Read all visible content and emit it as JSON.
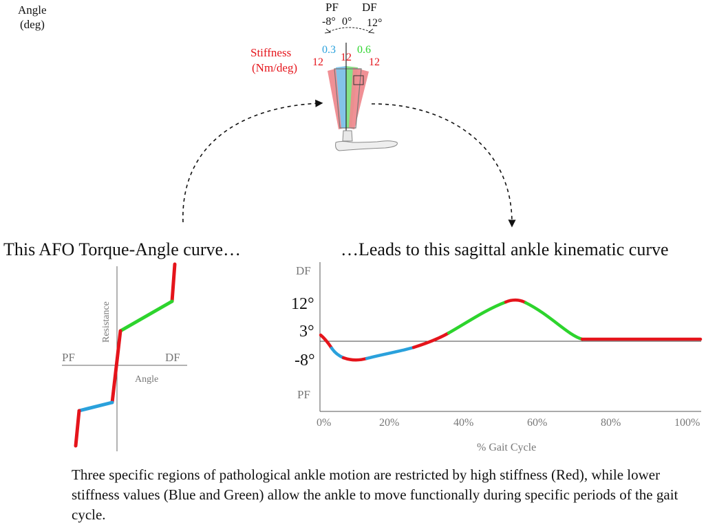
{
  "colors": {
    "red": "#e5141b",
    "blue": "#2aa1dc",
    "green": "#2dd42d",
    "red_fill": "#ef8a8f",
    "blue_fill": "#7cc6ec",
    "green_fill": "#7fe07f",
    "axis": "#555555",
    "text_gray": "#777777"
  },
  "afo": {
    "angle_label_1": "Angle",
    "angle_label_2": "(deg)",
    "pf_label": "PF",
    "df_label": "DF",
    "pf_angle": "-8°",
    "zero_angle": "0°",
    "df_angle": "12°",
    "stiffness_label_1": "Stiffness",
    "stiffness_label_2": "(Nm/deg)",
    "stiffness_left_red": "12",
    "stiffness_blue": "0.3",
    "stiffness_center_red": "12",
    "stiffness_green": "0.6",
    "stiffness_right_red": "12"
  },
  "left_panel": {
    "heading": "This AFO Torque-Angle curve…",
    "y_axis_label": "Resistance",
    "x_axis_label": "Angle",
    "pf_label": "PF",
    "df_label": "DF"
  },
  "right_panel": {
    "heading": "…Leads to this sagittal ankle kinematic curve",
    "df_label": "DF",
    "pf_label": "PF",
    "y_ticks": [
      "12°",
      "3°",
      "-8°"
    ],
    "x_axis_label": "% Gait Cycle",
    "x_ticks": [
      "0%",
      "20%",
      "40%",
      "60%",
      "80%",
      "100%"
    ]
  },
  "caption": "Three specific regions of pathological ankle motion are restricted by high stiffness (Red), while lower stiffness values (Blue and Green) allow the ankle to move functionally during specific periods of the gait cycle."
}
